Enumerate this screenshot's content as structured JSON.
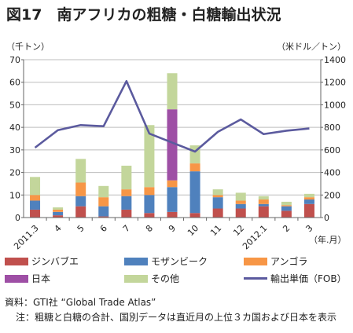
{
  "title": "図17　南アフリカの粗糖・白糖輸出状況",
  "chart_data": {
    "type": "bar",
    "stacked": true,
    "left_unit": "（千トン）",
    "right_unit": "（米ドル／トン）",
    "x_unit": "（年.月）",
    "categories": [
      "2011.3",
      "4",
      "5",
      "6",
      "7",
      "8",
      "9",
      "10",
      "11",
      "12",
      "2012.1",
      "2",
      "3"
    ],
    "left_ylim": [
      0,
      70
    ],
    "left_ticks": [
      0,
      10,
      20,
      30,
      40,
      50,
      60,
      70
    ],
    "right_ylim": [
      0,
      1400
    ],
    "right_ticks": [
      0,
      200,
      400,
      600,
      800,
      1000,
      1200,
      1400
    ],
    "series": [
      {
        "name": "ジンバブエ",
        "color": "#c0504d",
        "values": [
          3.5,
          1,
          5,
          0.5,
          3.5,
          2,
          2.5,
          2,
          4,
          4,
          5,
          3,
          6
        ]
      },
      {
        "name": "モザンビーク",
        "color": "#4f81bd",
        "values": [
          4,
          1.5,
          4.5,
          4.5,
          6,
          8,
          11,
          18.5,
          5,
          2,
          1,
          2,
          2
        ]
      },
      {
        "name": "アンゴラ",
        "color": "#f79646",
        "values": [
          2.5,
          1,
          6,
          4,
          3,
          3.5,
          3,
          3.5,
          1,
          1.5,
          2,
          0.5,
          1
        ]
      },
      {
        "name": "日本",
        "color": "#9e4fa5",
        "values": [
          0,
          0,
          0,
          0,
          0,
          0,
          31.5,
          0,
          0,
          0,
          0,
          0,
          0
        ]
      },
      {
        "name": "その他",
        "color": "#c3d69b",
        "values": [
          8,
          1,
          10.5,
          5,
          10.5,
          27.5,
          16,
          8,
          2.5,
          3.5,
          1.5,
          1.5,
          1.5
        ]
      }
    ],
    "line_series": {
      "name": "輸出単価（FOB）",
      "color": "#5b5a9e",
      "values": [
        620,
        775,
        820,
        810,
        1210,
        745,
        665,
        585,
        760,
        870,
        740,
        770,
        790
      ]
    }
  },
  "notes": [
    "資料：GTI社 “Global Trade Atlas”",
    "注：粗糖と白糖の合計、国別データは直近月の上位３カ国および日本を表示"
  ]
}
